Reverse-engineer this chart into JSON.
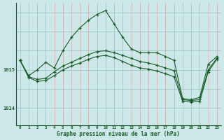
{
  "xlabel": "Graphe pression niveau de la mer (hPa)",
  "bg_color": "#cce8e8",
  "line_color": "#1a5c28",
  "ytick_labels": [
    "1014",
    "1015"
  ],
  "ytick_vals": [
    1014.0,
    1015.0
  ],
  "ylim": [
    1013.55,
    1016.75
  ],
  "xlim": [
    -0.5,
    23.5
  ],
  "xticks": [
    0,
    1,
    2,
    3,
    4,
    5,
    6,
    7,
    8,
    9,
    10,
    11,
    12,
    13,
    14,
    15,
    16,
    17,
    18,
    19,
    20,
    21,
    22,
    23
  ],
  "series1_x": [
    0,
    1,
    2,
    3,
    4,
    5,
    6,
    7,
    8,
    9,
    10,
    11,
    12,
    13,
    14,
    15,
    16,
    17,
    18,
    19,
    20,
    21,
    22,
    23
  ],
  "series1_y": [
    1015.25,
    1014.85,
    1015.0,
    1015.2,
    1015.05,
    1015.5,
    1015.85,
    1016.1,
    1016.3,
    1016.45,
    1016.55,
    1016.2,
    1015.85,
    1015.55,
    1015.45,
    1015.45,
    1015.45,
    1015.35,
    1015.25,
    1014.25,
    1014.22,
    1014.28,
    1015.15,
    1015.35
  ],
  "series2_x": [
    0,
    1,
    2,
    3,
    4,
    5,
    6,
    7,
    8,
    9,
    10,
    11,
    12,
    13,
    14,
    15,
    16,
    17,
    18,
    19,
    20,
    21,
    22,
    23
  ],
  "series2_y": [
    1015.25,
    1014.82,
    1014.75,
    1014.78,
    1014.95,
    1015.1,
    1015.2,
    1015.3,
    1015.4,
    1015.48,
    1015.5,
    1015.45,
    1015.38,
    1015.3,
    1015.22,
    1015.18,
    1015.12,
    1015.05,
    1014.98,
    1014.22,
    1014.2,
    1014.22,
    1015.0,
    1015.3
  ],
  "series3_x": [
    0,
    1,
    2,
    3,
    4,
    5,
    6,
    7,
    8,
    9,
    10,
    11,
    12,
    13,
    14,
    15,
    16,
    17,
    18,
    19,
    20,
    21,
    22,
    23
  ],
  "series3_y": [
    1015.25,
    1014.8,
    1014.7,
    1014.72,
    1014.85,
    1015.0,
    1015.1,
    1015.18,
    1015.28,
    1015.35,
    1015.38,
    1015.32,
    1015.22,
    1015.12,
    1015.05,
    1015.02,
    1014.97,
    1014.9,
    1014.82,
    1014.18,
    1014.16,
    1014.18,
    1014.95,
    1015.28
  ]
}
